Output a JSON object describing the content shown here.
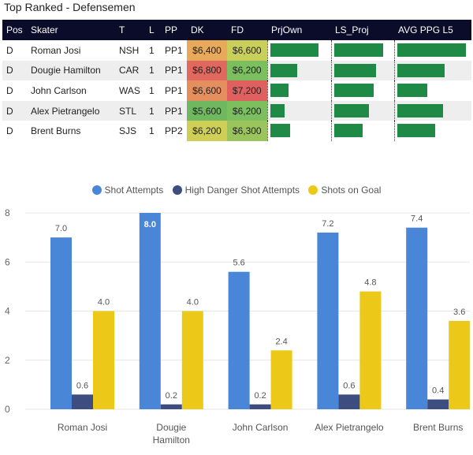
{
  "title": "Top Ranked - Defensemen",
  "table": {
    "headers": [
      "Pos",
      "Skater",
      "T",
      "L",
      "PP",
      "DK",
      "FD",
      "PrjOwn",
      "LS_Proj",
      "AVG PPG L5"
    ],
    "rows": [
      {
        "pos": "D",
        "skater": "Roman Josi",
        "team": "NSH",
        "line": "1",
        "pp": "PP1",
        "dk": "$6,400",
        "fd": "$6,600",
        "dk_color": "#e9a95a",
        "fd_color": "#c9cf5a",
        "prjown": 0.85,
        "ls_proj": 0.88,
        "avg_ppg": 0.98
      },
      {
        "pos": "D",
        "skater": "Dougie Hamilton",
        "team": "CAR",
        "line": "1",
        "pp": "PP1",
        "dk": "$6,800",
        "fd": "$6,200",
        "dk_color": "#e0685f",
        "fd_color": "#7bbf5e",
        "prjown": 0.48,
        "ls_proj": 0.75,
        "avg_ppg": 0.68
      },
      {
        "pos": "D",
        "skater": "John Carlson",
        "team": "WAS",
        "line": "1",
        "pp": "PP1",
        "dk": "$6,600",
        "fd": "$7,200",
        "dk_color": "#e58f5f",
        "fd_color": "#e06060",
        "prjown": 0.32,
        "ls_proj": 0.71,
        "avg_ppg": 0.43
      },
      {
        "pos": "D",
        "skater": "Alex Pietrangelo",
        "team": "STL",
        "line": "1",
        "pp": "PP1",
        "dk": "$5,600",
        "fd": "$6,200",
        "dk_color": "#6fb860",
        "fd_color": "#7bbf5e",
        "prjown": 0.26,
        "ls_proj": 0.62,
        "avg_ppg": 0.66
      },
      {
        "pos": "D",
        "skater": "Brent Burns",
        "team": "SJS",
        "line": "1",
        "pp": "PP2",
        "dk": "$6,200",
        "fd": "$6,300",
        "dk_color": "#cfcf58",
        "fd_color": "#9bc55c",
        "prjown": 0.36,
        "ls_proj": 0.52,
        "avg_ppg": 0.55
      }
    ]
  },
  "chart_data": {
    "type": "bar",
    "categories": [
      "Roman Josi",
      "Dougie Hamilton",
      "John Carlson",
      "Alex Pietrangelo",
      "Brent Burns"
    ],
    "category_lines": [
      [
        "Roman Josi"
      ],
      [
        "Dougie",
        "Hamilton"
      ],
      [
        "John Carlson"
      ],
      [
        "Alex Pietrangelo"
      ],
      [
        "Brent Burns"
      ]
    ],
    "series": [
      {
        "name": "Shot Attempts",
        "color": "#4a86d8",
        "values": [
          7.0,
          8.0,
          5.6,
          7.2,
          7.4
        ],
        "labels": [
          "7.0",
          "8.0",
          "5.6",
          "7.2",
          "7.4"
        ]
      },
      {
        "name": "High Danger Shot Attempts",
        "color": "#3e4d80",
        "values": [
          0.6,
          0.2,
          0.2,
          0.6,
          0.4
        ],
        "labels": [
          "0.6",
          "0.2",
          "0.2",
          "0.6",
          "0.4"
        ]
      },
      {
        "name": "Shots on Goal",
        "color": "#ecc918",
        "values": [
          4.0,
          4.0,
          2.4,
          4.8,
          3.6
        ],
        "labels": [
          "4.0",
          "4.0",
          "2.4",
          "4.8",
          "3.6"
        ]
      }
    ],
    "yticks": [
      "0",
      "2",
      "4",
      "6",
      "8"
    ],
    "ylim": [
      0,
      8
    ],
    "legend_position": "top-center",
    "gridlines": true
  }
}
